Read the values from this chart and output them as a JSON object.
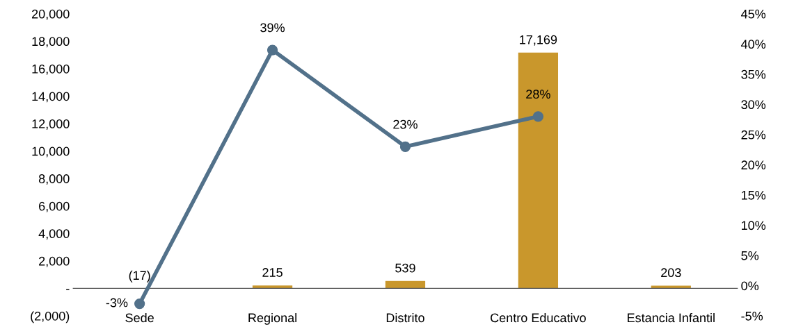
{
  "chart_data": {
    "type": "bar",
    "categories": [
      "Sede",
      "Regional",
      "Distrito",
      "Centro Educativo",
      "Estancia Infantil"
    ],
    "series": [
      {
        "color": "#c9972c",
        "values": [
          -17,
          215,
          539,
          17169,
          203
        ],
        "value_labels": [
          "(17)",
          "215",
          "539",
          "17,169",
          "203"
        ]
      },
      {
        "type": "line",
        "axis": "y2",
        "color": "#52718a",
        "values": [
          -3,
          39,
          23,
          28,
          null
        ],
        "value_labels": [
          "-3%",
          "39%",
          "23%",
          "28%",
          null
        ]
      }
    ],
    "ylim": [
      -2000,
      20000
    ],
    "yticks": [
      {
        "value": -2000,
        "label": "(2,000)"
      },
      {
        "value": 0,
        "label": "-"
      },
      {
        "value": 2000,
        "label": "2,000"
      },
      {
        "value": 4000,
        "label": "4,000"
      },
      {
        "value": 6000,
        "label": "6,000"
      },
      {
        "value": 8000,
        "label": "8,000"
      },
      {
        "value": 10000,
        "label": "10,000"
      },
      {
        "value": 12000,
        "label": "12,000"
      },
      {
        "value": 14000,
        "label": "14,000"
      },
      {
        "value": 16000,
        "label": "16,000"
      },
      {
        "value": 18000,
        "label": "18,000"
      },
      {
        "value": 20000,
        "label": "20,000"
      }
    ],
    "y2lim": [
      -5,
      45
    ],
    "y2ticks": [
      {
        "value": -5,
        "label": "-5%"
      },
      {
        "value": 0,
        "label": "0%"
      },
      {
        "value": 5,
        "label": "5%"
      },
      {
        "value": 10,
        "label": "10%"
      },
      {
        "value": 15,
        "label": "15%"
      },
      {
        "value": 20,
        "label": "20%"
      },
      {
        "value": 25,
        "label": "25%"
      },
      {
        "value": 30,
        "label": "30%"
      },
      {
        "value": 35,
        "label": "35%"
      },
      {
        "value": 40,
        "label": "40%"
      },
      {
        "value": 45,
        "label": "45%"
      }
    ],
    "marker": "circle",
    "line_style": "solid",
    "grid": false,
    "legend": false
  }
}
